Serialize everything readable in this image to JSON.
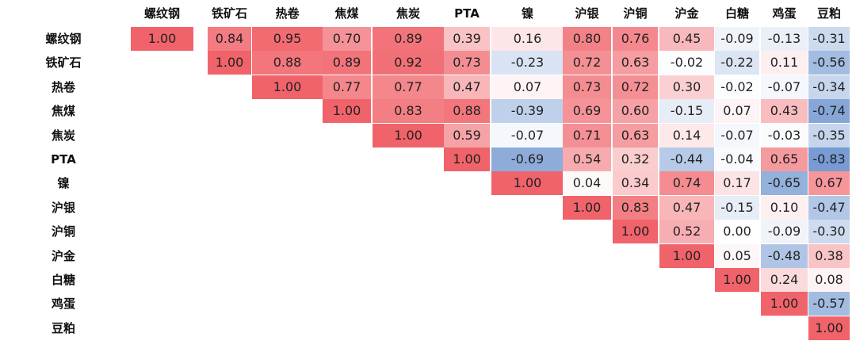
{
  "chart_data": {
    "type": "heatmap",
    "categories": [
      "螺纹钢",
      "铁矿石",
      "热卷",
      "焦煤",
      "焦炭",
      "PTA",
      "镍",
      "沪银",
      "沪铜",
      "沪金",
      "白糖",
      "鸡蛋",
      "豆粕"
    ],
    "matrix": [
      [
        "1.00",
        "0.84",
        "0.95",
        "0.70",
        "0.89",
        "0.39",
        "0.16",
        "0.80",
        "0.76",
        "0.45",
        "-0.09",
        "-0.13",
        "-0.31"
      ],
      [
        null,
        "1.00",
        "0.88",
        "0.89",
        "0.92",
        "0.73",
        "-0.23",
        "0.72",
        "0.63",
        "-0.02",
        "-0.22",
        "0.11",
        "-0.56"
      ],
      [
        null,
        null,
        "1.00",
        "0.77",
        "0.77",
        "0.47",
        "0.07",
        "0.73",
        "0.72",
        "0.30",
        "-0.02",
        "-0.07",
        "-0.34"
      ],
      [
        null,
        null,
        null,
        "1.00",
        "0.83",
        "0.88",
        "-0.39",
        "0.69",
        "0.60",
        "-0.15",
        "0.07",
        "0.43",
        "-0.74"
      ],
      [
        null,
        null,
        null,
        null,
        "1.00",
        "0.59",
        "-0.07",
        "0.71",
        "0.63",
        "0.14",
        "-0.07",
        "-0.03",
        "-0.35"
      ],
      [
        null,
        null,
        null,
        null,
        null,
        "1.00",
        "-0.69",
        "0.54",
        "0.32",
        "-0.44",
        "-0.04",
        "0.65",
        "-0.83"
      ],
      [
        null,
        null,
        null,
        null,
        null,
        null,
        "1.00",
        "0.04",
        "0.34",
        "0.74",
        "0.17",
        "-0.65",
        "0.67"
      ],
      [
        null,
        null,
        null,
        null,
        null,
        null,
        null,
        "1.00",
        "0.83",
        "0.47",
        "-0.15",
        "0.10",
        "-0.47"
      ],
      [
        null,
        null,
        null,
        null,
        null,
        null,
        null,
        null,
        "1.00",
        "0.52",
        "0.00",
        "-0.09",
        "-0.30"
      ],
      [
        null,
        null,
        null,
        null,
        null,
        null,
        null,
        null,
        null,
        "1.00",
        "0.05",
        "-0.48",
        "0.38"
      ],
      [
        null,
        null,
        null,
        null,
        null,
        null,
        null,
        null,
        null,
        null,
        "1.00",
        "0.24",
        "0.08"
      ],
      [
        null,
        null,
        null,
        null,
        null,
        null,
        null,
        null,
        null,
        null,
        null,
        "1.00",
        "-0.57"
      ],
      [
        null,
        null,
        null,
        null,
        null,
        null,
        null,
        null,
        null,
        null,
        null,
        null,
        "1.00"
      ]
    ],
    "value_range": [
      -1,
      1
    ],
    "colors": {
      "positive": "#f0636a",
      "neutral": "#ffffff",
      "negative": "#5b87c9"
    }
  }
}
